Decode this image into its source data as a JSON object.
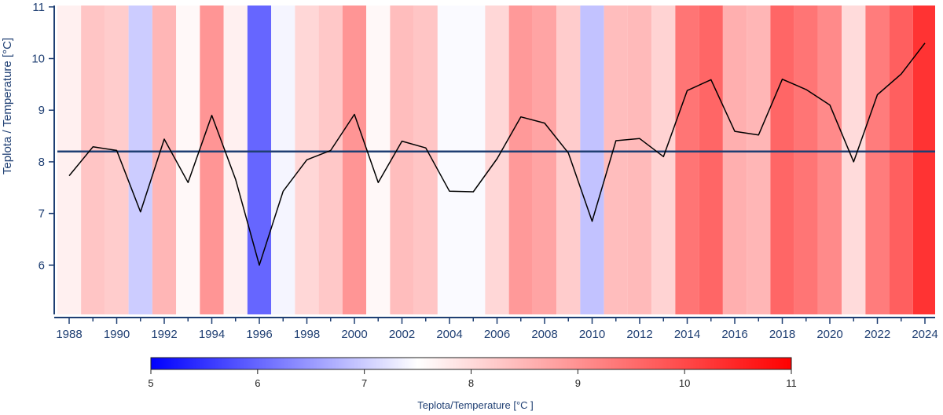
{
  "chart_data": {
    "type": "line",
    "title": "",
    "xlabel": "",
    "ylabel": "Teplota / Temperature [°C]",
    "ylim": [
      5,
      11
    ],
    "yticks": [
      "6",
      "7",
      "8",
      "9",
      "10",
      "11"
    ],
    "xticks": [
      "1988",
      "1990",
      "1992",
      "1994",
      "1996",
      "1998",
      "2000",
      "2002",
      "2004",
      "2006",
      "2008",
      "2010",
      "2012",
      "2014",
      "2016",
      "2018",
      "2020",
      "2022",
      "2024"
    ],
    "x": [
      1988,
      1989,
      1990,
      1991,
      1992,
      1993,
      1994,
      1995,
      1996,
      1997,
      1998,
      1999,
      2000,
      2001,
      2002,
      2003,
      2004,
      2005,
      2006,
      2007,
      2008,
      2009,
      2010,
      2011,
      2012,
      2013,
      2014,
      2015,
      2016,
      2017,
      2018,
      2019,
      2020,
      2021,
      2022,
      2023,
      2024
    ],
    "series": [
      {
        "values": [
          7.73,
          8.29,
          8.22,
          7.03,
          8.44,
          7.6,
          8.9,
          7.66,
          6.0,
          7.43,
          8.04,
          8.22,
          8.92,
          7.6,
          8.4,
          8.27,
          7.43,
          7.42,
          8.06,
          8.87,
          8.75,
          8.17,
          6.85,
          8.41,
          8.45,
          8.1,
          9.38,
          9.59,
          8.59,
          8.52,
          9.6,
          9.4,
          9.1,
          8.0,
          9.3,
          9.7,
          10.3
        ],
        "color": "#000000"
      }
    ],
    "reference_line": {
      "value": 8.2,
      "color": "#1f3f73"
    },
    "stripes": {
      "values": [
        7.7,
        8.3,
        8.2,
        7.0,
        8.5,
        7.6,
        8.95,
        7.7,
        6.0,
        7.4,
        8.05,
        8.25,
        8.95,
        7.6,
        8.4,
        8.3,
        7.45,
        7.45,
        8.05,
        8.9,
        8.75,
        8.2,
        6.9,
        8.4,
        8.45,
        8.1,
        9.4,
        9.6,
        8.6,
        8.5,
        9.6,
        9.4,
        9.1,
        8.0,
        9.3,
        9.7,
        10.3
      ],
      "note": "one colored band per year"
    },
    "colorbar": {
      "min": 5,
      "max": 11,
      "ticks": [
        "5",
        "6",
        "7",
        "8",
        "9",
        "10",
        "11"
      ],
      "label": "Teplota/Temperature [°C ]",
      "colors": {
        "low": "#0000ff",
        "mid": "#ffffff",
        "high": "#ff0000",
        "mid_value": 7.5
      }
    },
    "grid": false
  }
}
